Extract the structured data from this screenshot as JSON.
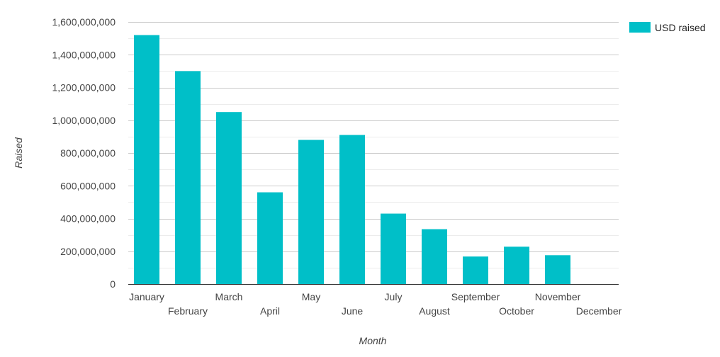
{
  "chart_data": {
    "type": "bar",
    "categories": [
      "January",
      "February",
      "March",
      "April",
      "May",
      "June",
      "July",
      "August",
      "September",
      "October",
      "November",
      "December"
    ],
    "series": [
      {
        "name": "USD raised",
        "values": [
          1520000000,
          1300000000,
          1050000000,
          560000000,
          880000000,
          910000000,
          430000000,
          335000000,
          168000000,
          228000000,
          176000000,
          0
        ],
        "color": "#00bfc8"
      }
    ],
    "xlabel": "Month",
    "ylabel": "Raised",
    "ylim": [
      0,
      1600000000
    ],
    "yticks": [
      "0",
      "200,000,000",
      "400,000,000",
      "600,000,000",
      "800,000,000",
      "1,000,000,000",
      "1,200,000,000",
      "1,400,000,000",
      "1,600,000,000"
    ],
    "grid": true,
    "legend_position": "top-right"
  }
}
